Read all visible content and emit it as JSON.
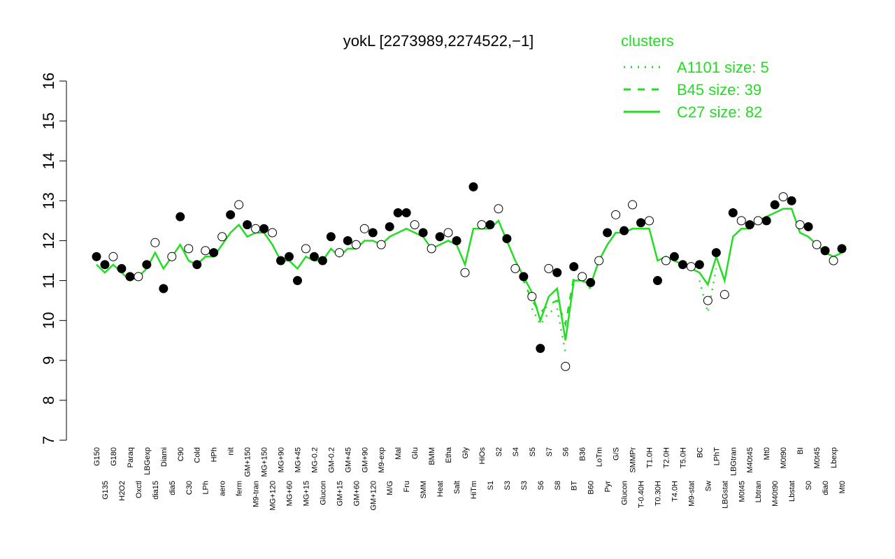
{
  "chart_data": {
    "type": "line",
    "title": "yokL [2273989,2274522,−1]",
    "legend_title": "clusters",
    "legend": "top-right",
    "categories": [
      "G150",
      "G135",
      "G180",
      "H2O2",
      "Paraq",
      "Oxctl",
      "LBGexp",
      "dia15",
      "Diami",
      "dia5",
      "C90",
      "C30",
      "Cold",
      "LPh",
      "HPh",
      "aero",
      "nit",
      "ferm",
      "GM+150",
      "M9-tran",
      "MG+150",
      "MG+120",
      "MG+90",
      "MG+60",
      "MG+45",
      "MG+15",
      "MG-0.2",
      "Glucon",
      "GM-0.2",
      "GM+15",
      "GM+45",
      "GM+60",
      "GM+90",
      "GM+120",
      "M9-exp",
      "M/G",
      "Mal",
      "Fru",
      "Glu",
      "SMM",
      "BMM",
      "Heat",
      "Etha",
      "Salt",
      "Gly",
      "HiTm",
      "HiOs",
      "S1",
      "S2",
      "S3",
      "S4",
      "S3",
      "S5",
      "S6",
      "S7",
      "S8",
      "S6",
      "BT",
      "B36",
      "B60",
      "LoTm",
      "Pyr",
      "G/S",
      "Glucon",
      "SMMPr",
      "T-0.40H",
      "T1.0H",
      "T0.30H",
      "T2.0H",
      "T4.0H",
      "T5.0H",
      "M9-stat",
      "BC",
      "Sw",
      "LPhT",
      "LBGstat",
      "LBGtran",
      "M0t45",
      "M40t45",
      "Lbtran",
      "Mt0",
      "M40t90",
      "M0t90",
      "Lbstat",
      "BI",
      "S0",
      "M0t45",
      "dia0",
      "Lbexp",
      "Mt0"
    ],
    "points": {
      "color": "#000000",
      "values": [
        11.6,
        11.4,
        11.6,
        11.3,
        11.1,
        11.1,
        11.4,
        11.95,
        10.8,
        11.6,
        12.6,
        11.8,
        11.4,
        11.75,
        11.7,
        12.1,
        12.65,
        12.9,
        12.4,
        12.3,
        12.3,
        12.2,
        11.5,
        11.6,
        11.0,
        11.8,
        11.6,
        11.5,
        12.1,
        11.7,
        12.0,
        11.9,
        12.3,
        12.2,
        11.9,
        12.35,
        12.7,
        12.7,
        12.4,
        12.2,
        11.8,
        12.1,
        12.2,
        12.0,
        11.2,
        13.35,
        12.4,
        12.4,
        12.8,
        12.05,
        11.3,
        11.1,
        10.6,
        9.3,
        11.3,
        11.2,
        8.85,
        11.35,
        11.1,
        10.95,
        11.5,
        12.2,
        12.65,
        12.25,
        12.9,
        12.45,
        12.5,
        11.0,
        11.5,
        11.6,
        11.4,
        11.35,
        11.4,
        10.5,
        11.7,
        10.65,
        12.7,
        12.5,
        12.4,
        12.5,
        12.5,
        12.9,
        13.1,
        13.0,
        12.4,
        12.35,
        11.9,
        11.75,
        11.5,
        11.8
      ],
      "filled": [
        1,
        1,
        0,
        1,
        1,
        0,
        1,
        0,
        1,
        0,
        1,
        0,
        1,
        0,
        1,
        0,
        1,
        0,
        1,
        0,
        1,
        0,
        1,
        1,
        1,
        0,
        1,
        1,
        1,
        0,
        1,
        0,
        0,
        1,
        0,
        1,
        1,
        1,
        0,
        1,
        0,
        1,
        0,
        1,
        0,
        1,
        0,
        1,
        0,
        1,
        0,
        1,
        0,
        1,
        0,
        1,
        0,
        1,
        0,
        1,
        0,
        1,
        0,
        1,
        0,
        1,
        0,
        1,
        0,
        1,
        1,
        0,
        1,
        0,
        1,
        0,
        1,
        0,
        1,
        0,
        1,
        1,
        0,
        1,
        0,
        1,
        0,
        1,
        0,
        1
      ]
    },
    "series": [
      {
        "name": "A1101 size: 5",
        "color": "#22dd22",
        "dash": "2 8",
        "values": [
          null,
          null,
          null,
          null,
          null,
          null,
          null,
          null,
          null,
          null,
          null,
          null,
          null,
          null,
          null,
          null,
          null,
          null,
          null,
          null,
          null,
          null,
          null,
          null,
          null,
          null,
          null,
          null,
          null,
          null,
          null,
          null,
          null,
          null,
          null,
          null,
          null,
          null,
          null,
          null,
          null,
          null,
          null,
          null,
          null,
          null,
          null,
          null,
          null,
          null,
          null,
          null,
          10.3,
          9.9,
          10.2,
          10.3,
          9.2,
          null,
          null,
          null,
          null,
          null,
          null,
          null,
          null,
          null,
          null,
          null,
          null,
          null,
          null,
          null,
          11.0,
          10.2,
          11.3,
          null,
          null,
          null,
          null,
          null,
          null,
          null,
          null,
          null,
          null,
          null,
          null,
          null,
          null,
          null
        ]
      },
      {
        "name": "B45 size: 39",
        "color": "#22dd22",
        "dash": "10 10",
        "values": [
          null,
          null,
          null,
          null,
          null,
          null,
          null,
          null,
          null,
          null,
          null,
          null,
          null,
          null,
          null,
          null,
          null,
          null,
          null,
          null,
          null,
          null,
          null,
          null,
          null,
          null,
          null,
          null,
          null,
          null,
          null,
          null,
          null,
          null,
          null,
          null,
          null,
          null,
          null,
          null,
          null,
          null,
          null,
          null,
          null,
          null,
          null,
          null,
          null,
          null,
          11.4,
          11.0,
          10.5,
          10.2,
          10.4,
          10.5,
          9.9,
          11.1,
          11.0,
          10.8,
          null,
          null,
          null,
          null,
          null,
          null,
          null,
          null,
          null,
          null,
          null,
          null,
          null,
          null,
          null,
          null,
          null,
          null,
          null,
          null,
          null,
          null,
          null,
          null,
          null,
          null,
          null,
          null,
          null,
          null
        ]
      },
      {
        "name": "C27 size: 82",
        "color": "#22dd22",
        "dash": "",
        "values": [
          11.4,
          11.2,
          11.4,
          11.2,
          11.0,
          11.1,
          11.3,
          11.7,
          11.3,
          11.6,
          11.9,
          11.5,
          11.4,
          11.6,
          11.6,
          11.9,
          12.2,
          12.4,
          12.1,
          12.2,
          12.2,
          11.9,
          11.5,
          11.5,
          11.3,
          11.6,
          11.5,
          11.5,
          11.8,
          11.6,
          11.8,
          11.8,
          12.0,
          12.0,
          11.9,
          12.1,
          12.2,
          12.3,
          12.2,
          12.1,
          11.8,
          11.9,
          12.0,
          11.9,
          11.4,
          12.3,
          12.3,
          12.3,
          12.5,
          12.0,
          11.5,
          11.1,
          10.7,
          10.0,
          10.6,
          10.8,
          9.5,
          11.0,
          11.0,
          10.9,
          11.5,
          11.9,
          12.2,
          12.2,
          12.3,
          12.3,
          12.3,
          11.5,
          11.6,
          11.5,
          11.4,
          11.3,
          11.2,
          10.9,
          11.6,
          11.0,
          12.1,
          12.3,
          12.3,
          12.5,
          12.6,
          12.7,
          12.8,
          12.8,
          12.2,
          12.1,
          11.9,
          11.7,
          11.6,
          11.7
        ]
      }
    ],
    "ylim": [
      7,
      16
    ],
    "yticks": [
      7,
      8,
      9,
      10,
      11,
      12,
      13,
      14,
      15,
      16
    ]
  }
}
